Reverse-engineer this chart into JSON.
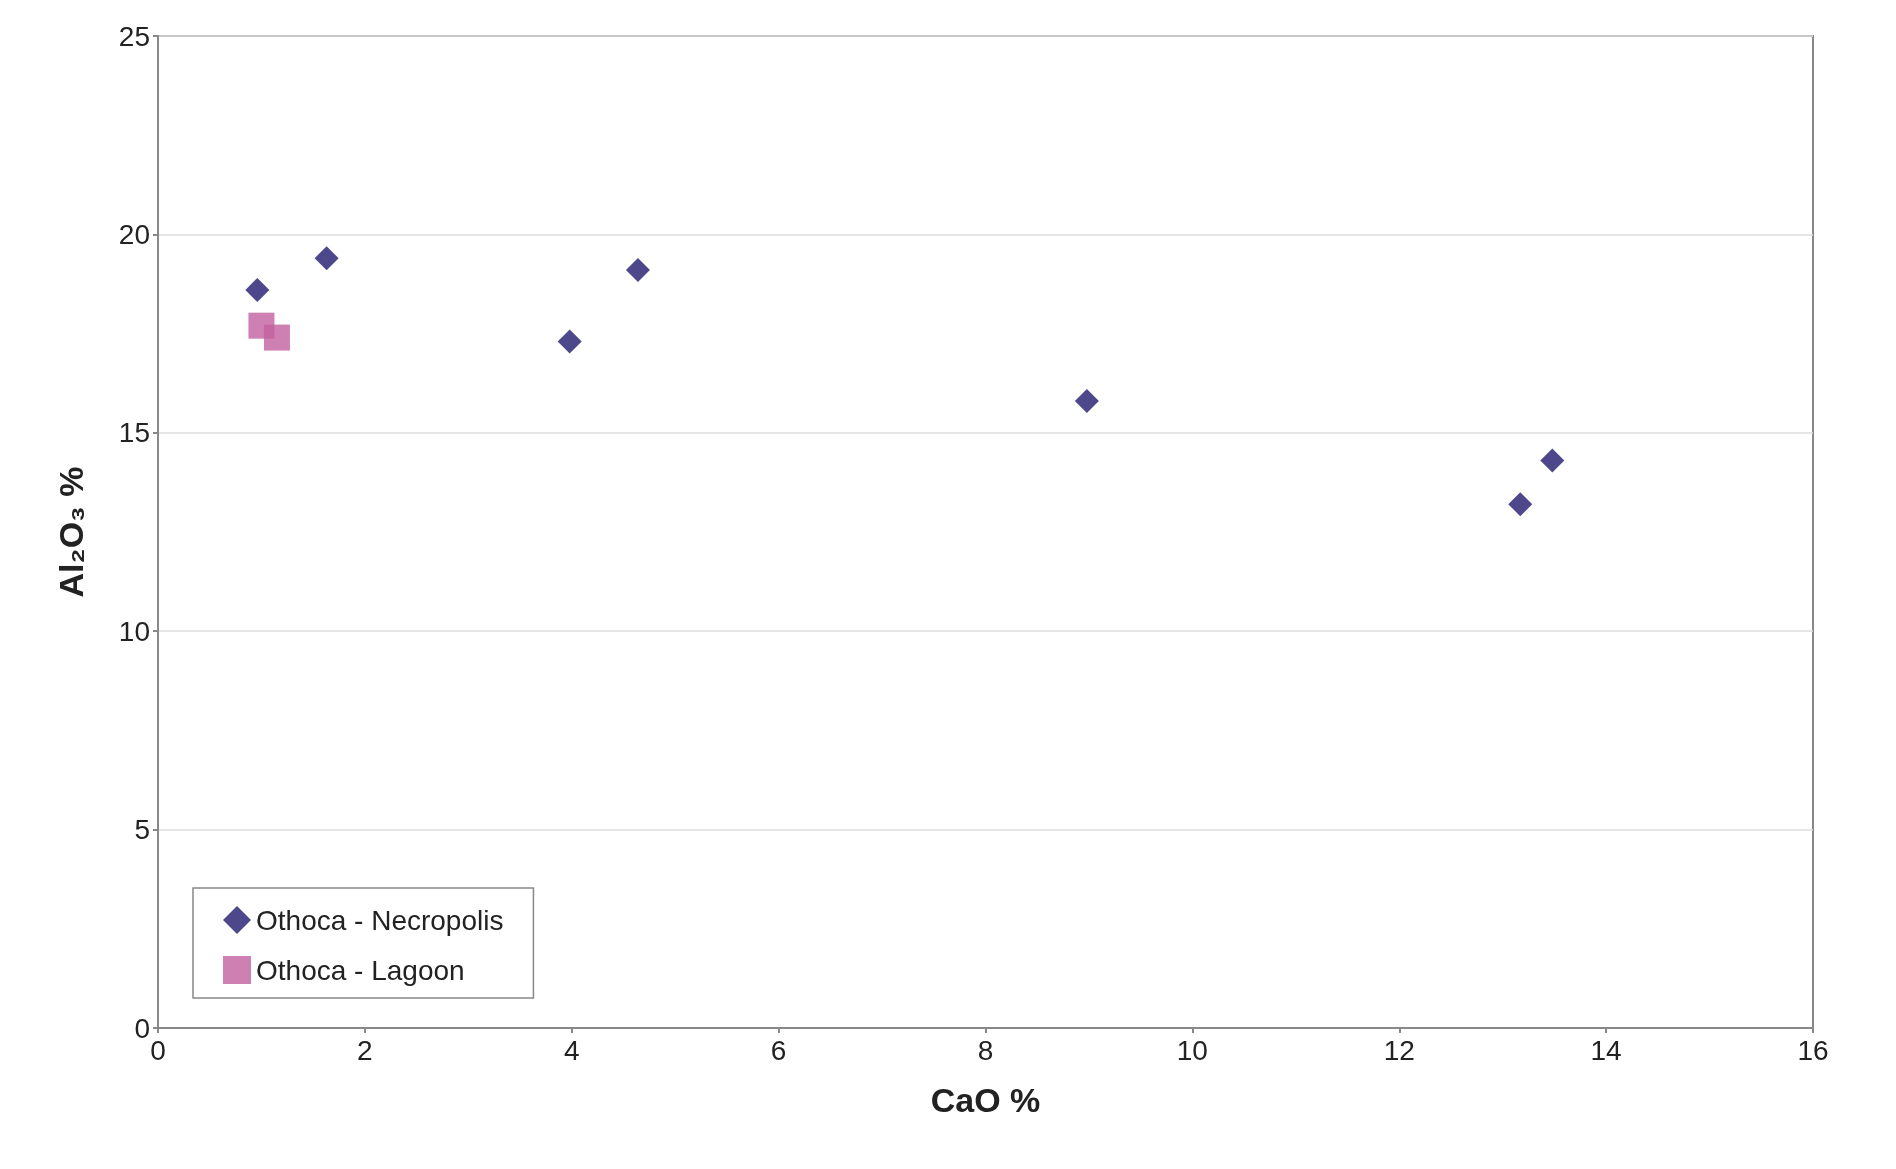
{
  "chart_data": {
    "type": "scatter",
    "xlabel": "CaO %",
    "ylabel": "Al₂O₃ %",
    "xlim": [
      0,
      16
    ],
    "xticks": [
      0,
      2,
      4,
      6,
      8,
      10,
      12,
      14,
      16
    ],
    "ylim": [
      0,
      25
    ],
    "yticks": [
      0,
      5,
      10,
      15,
      20,
      25
    ],
    "grid": "y",
    "legend": "bottom left",
    "series": [
      {
        "name": "Othoca - Necropolis",
        "color": "#1f1a6e",
        "marker": "diamond",
        "x": [
          0.96,
          1.63,
          3.98,
          4.64,
          8.98,
          13.17,
          13.48
        ],
        "values": [
          18.6,
          19.4,
          17.3,
          19.1,
          15.8,
          13.2,
          14.3
        ]
      },
      {
        "name": "Othoca - Lagoon",
        "color": "#c2609f",
        "marker": "square",
        "x": [
          1.0,
          1.15
        ],
        "values": [
          17.7,
          17.4
        ]
      }
    ]
  }
}
